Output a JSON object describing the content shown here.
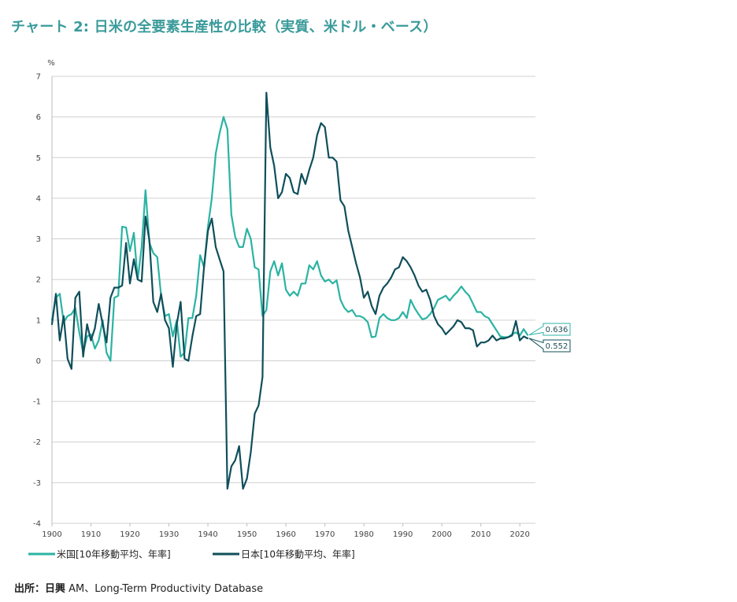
{
  "title": "チャート 2: 日米の全要素生産性の比較（実質、米ドル・ベース）",
  "source_prefix": "出所：日興",
  "source_text": " AM、Long-Term Productivity Database",
  "colors": {
    "us": "#2bb3a3",
    "japan": "#0f4f5a",
    "grid": "#d0d0d0"
  },
  "chart_data": {
    "type": "line",
    "ylabel": "%",
    "ylim": [
      -4,
      7
    ],
    "xlim": [
      1900,
      2024
    ],
    "yticks": [
      -4,
      -3,
      -2,
      -1,
      0,
      1,
      2,
      3,
      4,
      5,
      6,
      7
    ],
    "xticks": [
      1900,
      1910,
      1920,
      1930,
      1940,
      1950,
      1960,
      1970,
      1980,
      1990,
      2000,
      2010,
      2020
    ],
    "grid": true,
    "legend_position": "bottom",
    "series": [
      {
        "name": "米国[10年移動平均、年率]",
        "key": "us",
        "end_label": "0.636",
        "x": [
          1900,
          1901,
          1902,
          1903,
          1904,
          1905,
          1906,
          1907,
          1908,
          1909,
          1910,
          1911,
          1912,
          1913,
          1914,
          1915,
          1916,
          1917,
          1918,
          1919,
          1920,
          1921,
          1922,
          1923,
          1924,
          1925,
          1926,
          1927,
          1928,
          1929,
          1930,
          1931,
          1932,
          1933,
          1934,
          1935,
          1936,
          1937,
          1938,
          1939,
          1940,
          1941,
          1942,
          1943,
          1944,
          1945,
          1946,
          1947,
          1948,
          1949,
          1950,
          1951,
          1952,
          1953,
          1954,
          1955,
          1956,
          1957,
          1958,
          1959,
          1960,
          1961,
          1962,
          1963,
          1964,
          1965,
          1966,
          1967,
          1968,
          1969,
          1970,
          1971,
          1972,
          1973,
          1974,
          1975,
          1976,
          1977,
          1978,
          1979,
          1980,
          1981,
          1982,
          1983,
          1984,
          1985,
          1986,
          1987,
          1988,
          1989,
          1990,
          1991,
          1992,
          1993,
          1994,
          1995,
          1996,
          1997,
          1998,
          1999,
          2000,
          2001,
          2002,
          2003,
          2004,
          2005,
          2006,
          2007,
          2008,
          2009,
          2010,
          2011,
          2012,
          2013,
          2014,
          2015,
          2016,
          2017,
          2018,
          2019,
          2020,
          2021,
          2022
        ],
        "y": [
          1.0,
          1.55,
          1.65,
          0.95,
          1.1,
          1.15,
          1.3,
          0.7,
          0.2,
          0.6,
          0.65,
          0.3,
          0.5,
          1.0,
          0.2,
          0.0,
          1.55,
          1.6,
          3.3,
          3.28,
          2.7,
          3.15,
          2.0,
          2.8,
          4.2,
          2.9,
          2.65,
          2.55,
          1.6,
          1.1,
          1.15,
          0.6,
          1.0,
          0.1,
          0.2,
          1.05,
          1.05,
          1.6,
          2.6,
          2.3,
          3.3,
          4.0,
          5.1,
          5.6,
          6.0,
          5.7,
          3.6,
          3.05,
          2.8,
          2.8,
          3.25,
          3.0,
          2.3,
          2.25,
          1.1,
          1.25,
          2.2,
          2.45,
          2.1,
          2.4,
          1.75,
          1.6,
          1.7,
          1.6,
          1.9,
          1.9,
          2.35,
          2.25,
          2.45,
          2.1,
          1.95,
          2.0,
          1.9,
          1.98,
          1.5,
          1.3,
          1.2,
          1.25,
          1.1,
          1.1,
          1.05,
          0.95,
          0.58,
          0.6,
          1.05,
          1.15,
          1.05,
          1.0,
          1.0,
          1.05,
          1.2,
          1.05,
          1.5,
          1.3,
          1.15,
          1.02,
          1.05,
          1.15,
          1.3,
          1.5,
          1.55,
          1.6,
          1.48,
          1.6,
          1.7,
          1.83,
          1.7,
          1.6,
          1.4,
          1.2,
          1.2,
          1.1,
          1.05,
          0.9,
          0.75,
          0.6,
          0.58,
          0.58,
          0.65,
          0.7,
          0.62,
          0.78,
          0.636
        ]
      },
      {
        "name": "日本[10年移動平均、年率]",
        "key": "japan",
        "end_label": "0.552",
        "x": [
          1900,
          1901,
          1902,
          1903,
          1904,
          1905,
          1906,
          1907,
          1908,
          1909,
          1910,
          1911,
          1912,
          1913,
          1914,
          1915,
          1916,
          1917,
          1918,
          1919,
          1920,
          1921,
          1922,
          1923,
          1924,
          1925,
          1926,
          1927,
          1928,
          1929,
          1930,
          1931,
          1932,
          1933,
          1934,
          1935,
          1936,
          1937,
          1938,
          1939,
          1940,
          1941,
          1942,
          1943,
          1944,
          1945,
          1946,
          1947,
          1948,
          1949,
          1950,
          1951,
          1952,
          1953,
          1954,
          1955,
          1956,
          1957,
          1958,
          1959,
          1960,
          1961,
          1962,
          1963,
          1964,
          1965,
          1966,
          1967,
          1968,
          1969,
          1970,
          1971,
          1972,
          1973,
          1974,
          1975,
          1976,
          1977,
          1978,
          1979,
          1980,
          1981,
          1982,
          1983,
          1984,
          1985,
          1986,
          1987,
          1988,
          1989,
          1990,
          1991,
          1992,
          1993,
          1994,
          1995,
          1996,
          1997,
          1998,
          1999,
          2000,
          2001,
          2002,
          2003,
          2004,
          2005,
          2006,
          2007,
          2008,
          2009,
          2010,
          2011,
          2012,
          2013,
          2014,
          2015,
          2016,
          2017,
          2018,
          2019,
          2020,
          2021,
          2022
        ],
        "y": [
          0.9,
          1.65,
          0.5,
          1.1,
          0.05,
          -0.2,
          1.55,
          1.7,
          0.1,
          0.9,
          0.5,
          0.8,
          1.4,
          0.9,
          0.45,
          1.55,
          1.8,
          1.8,
          1.85,
          2.9,
          1.9,
          2.5,
          2.0,
          1.95,
          3.55,
          2.95,
          1.45,
          1.2,
          1.65,
          1.0,
          0.8,
          -0.15,
          0.9,
          1.45,
          0.05,
          0.0,
          0.6,
          1.1,
          1.15,
          2.3,
          3.2,
          3.5,
          2.8,
          2.5,
          2.2,
          -3.15,
          -2.6,
          -2.45,
          -2.1,
          -3.15,
          -2.9,
          -2.25,
          -1.3,
          -1.1,
          -0.4,
          6.6,
          5.25,
          4.8,
          4.0,
          4.15,
          4.6,
          4.5,
          4.15,
          4.1,
          4.6,
          4.35,
          4.7,
          5.0,
          5.55,
          5.85,
          5.75,
          5.0,
          5.0,
          4.9,
          3.95,
          3.8,
          3.2,
          2.8,
          2.4,
          2.05,
          1.55,
          1.7,
          1.35,
          1.15,
          1.6,
          1.8,
          1.9,
          2.05,
          2.25,
          2.3,
          2.55,
          2.45,
          2.3,
          2.1,
          1.85,
          1.7,
          1.75,
          1.5,
          1.1,
          0.9,
          0.8,
          0.65,
          0.75,
          0.85,
          1.0,
          0.95,
          0.8,
          0.8,
          0.75,
          0.35,
          0.45,
          0.45,
          0.5,
          0.62,
          0.5,
          0.55,
          0.55,
          0.58,
          0.62,
          0.98,
          0.5,
          0.6,
          0.552
        ]
      }
    ]
  }
}
